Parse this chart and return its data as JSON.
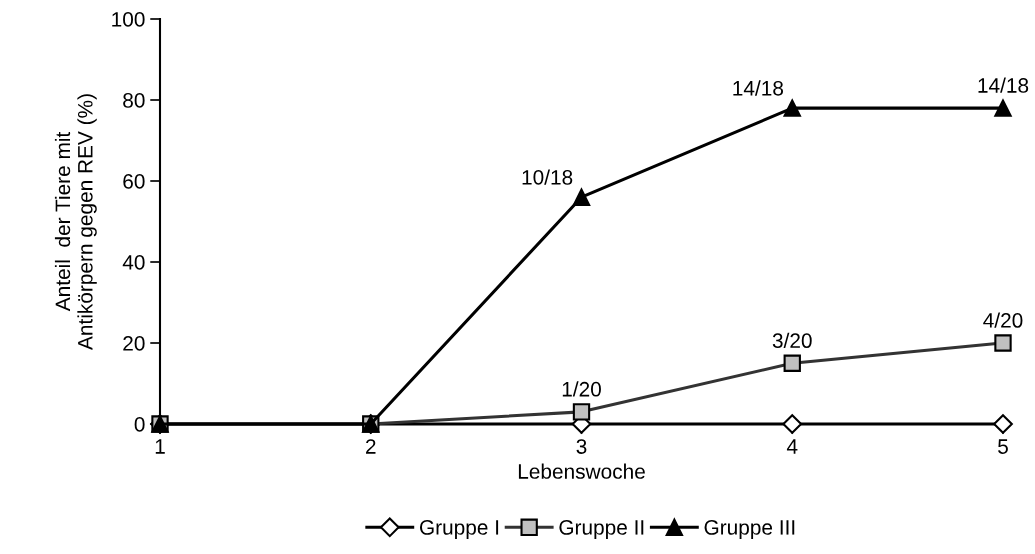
{
  "chart_data": {
    "type": "line",
    "xlabel": "Lebenswoche",
    "ylabel": "Anteil  der Tiere mit\nAntikörpern gegen REV (%)",
    "x": [
      1,
      2,
      3,
      4,
      5
    ],
    "xlim": [
      1,
      5
    ],
    "xticks": [
      1,
      2,
      3,
      4,
      5
    ],
    "ylim": [
      0,
      100
    ],
    "yticks": [
      0,
      20,
      40,
      60,
      80,
      100
    ],
    "grid": false,
    "legend": "bottom",
    "series": [
      {
        "name": "Gruppe I",
        "color": "#ffffff",
        "marker": "diamond",
        "values": [
          0,
          0,
          0,
          0,
          0
        ]
      },
      {
        "name": "Gruppe II",
        "color": "#c0c0c0",
        "marker": "square",
        "values": [
          0,
          0,
          3,
          15,
          20
        ],
        "value_labels": [
          null,
          null,
          "1/20",
          "3/20",
          "4/20"
        ]
      },
      {
        "name": "Gruppe III",
        "color": "#000000",
        "marker": "triangle",
        "values": [
          0,
          0,
          56,
          78,
          78
        ],
        "value_labels": [
          null,
          null,
          "10/18",
          "14/18",
          "14/18"
        ]
      }
    ]
  }
}
